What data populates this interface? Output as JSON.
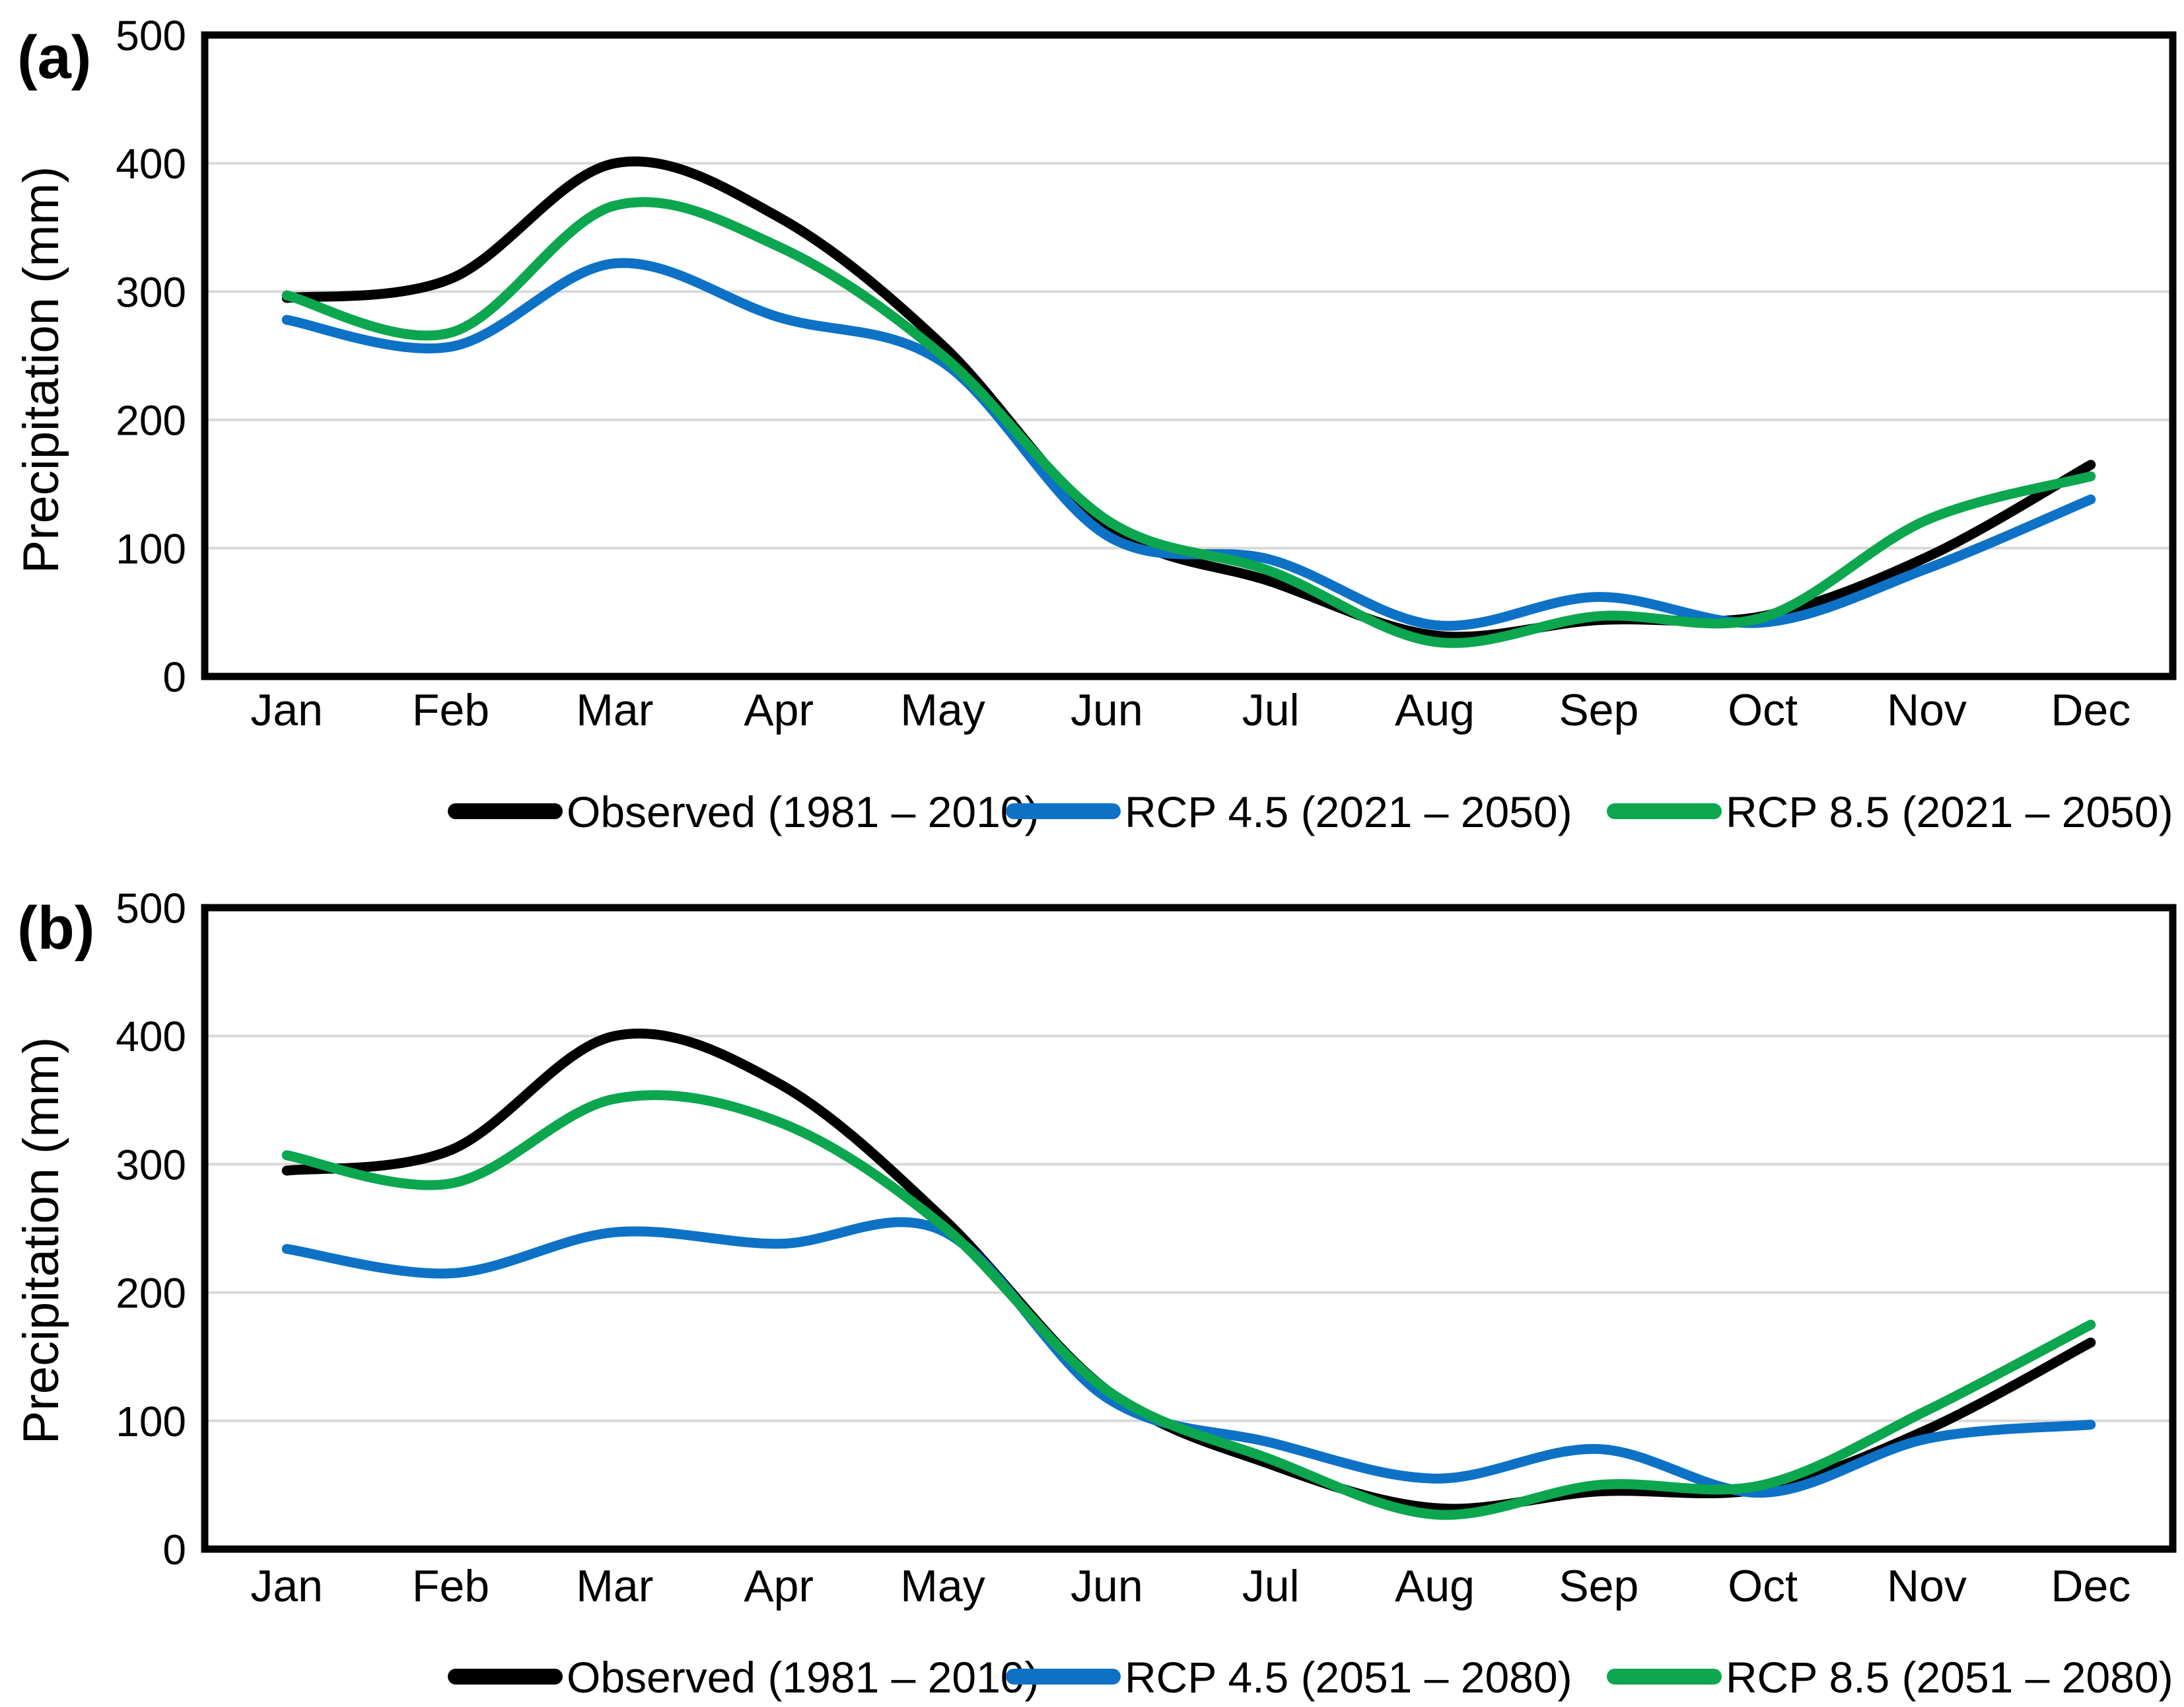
{
  "figure": {
    "background": "#ffffff",
    "grid_color": "#d9d9d9",
    "border_color": "#000000"
  },
  "chart_data": [
    {
      "type": "line",
      "panel_label": "(a)",
      "ylabel": "Precipitation (mm)",
      "xlabel": "",
      "ylim": [
        0,
        500
      ],
      "yticks": [
        "0",
        "100",
        "200",
        "300",
        "400",
        "500"
      ],
      "grid": "horizontal-on",
      "legend_position": "bottom",
      "categories": [
        "Jan",
        "Feb",
        "Mar",
        "Apr",
        "May",
        "Jun",
        "Jul",
        "Aug",
        "Sep",
        "Oct",
        "Nov",
        "Dec"
      ],
      "series": [
        {
          "name": "Observed (1981 – 2010)",
          "color": "#000000",
          "values": [
            295,
            310,
            400,
            358,
            258,
            118,
            74,
            32,
            44,
            47,
            93,
            165
          ]
        },
        {
          "name": "RCP 4.5 (2021 – 2050)",
          "color": "#0d72c6",
          "values": [
            278,
            257,
            322,
            280,
            245,
            110,
            91,
            40,
            62,
            42,
            84,
            138
          ]
        },
        {
          "name": "RCP 8.5 (2021 – 2050)",
          "color": "#0ca64f",
          "values": [
            297,
            268,
            367,
            335,
            250,
            122,
            82,
            27,
            47,
            46,
            122,
            156
          ]
        }
      ]
    },
    {
      "type": "line",
      "panel_label": "(b)",
      "ylabel": "Precipitation (mm)",
      "xlabel": "",
      "ylim": [
        0,
        500
      ],
      "yticks": [
        "0",
        "100",
        "200",
        "300",
        "400",
        "500"
      ],
      "grid": "horizontal-on",
      "legend_position": "bottom",
      "categories": [
        "Jan",
        "Feb",
        "Mar",
        "Apr",
        "May",
        "Jun",
        "Jul",
        "Aug",
        "Sep",
        "Oct",
        "Nov",
        "Dec"
      ],
      "series": [
        {
          "name": "Observed (1981 – 2010)",
          "color": "#000000",
          "values": [
            295,
            311,
            400,
            363,
            258,
            124,
            66,
            32,
            45,
            47,
            93,
            161
          ]
        },
        {
          "name": "RCP 4.5 (2051 – 2080)",
          "color": "#0d72c6",
          "values": [
            234,
            215,
            247,
            238,
            248,
            118,
            83,
            55,
            78,
            44,
            86,
            97
          ]
        },
        {
          "name": "RCP 8.5 (2051 – 2080)",
          "color": "#0ca64f",
          "values": [
            307,
            285,
            351,
            333,
            252,
            124,
            70,
            27,
            50,
            50,
            108,
            175
          ]
        }
      ]
    }
  ]
}
